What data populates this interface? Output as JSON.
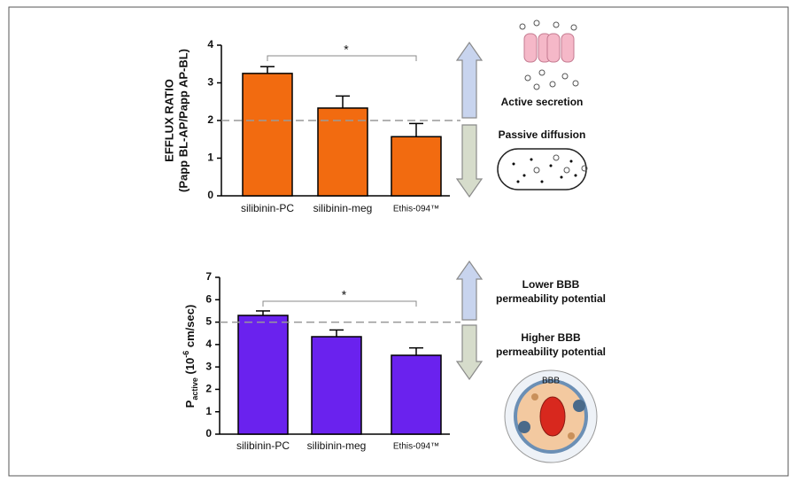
{
  "chart_data": [
    {
      "type": "bar",
      "ylabel": [
        "EFFLUX RATIO",
        "(Papp BL-AP/Papp AP-BL)"
      ],
      "categories": [
        "silibinin-PC",
        "silibinin-meg",
        "Ethis-094™"
      ],
      "values": [
        3.25,
        2.33,
        1.57
      ],
      "errors": [
        0.18,
        0.32,
        0.35
      ],
      "color": "#f26b10",
      "ylim": [
        0,
        4
      ],
      "yticks": [
        0,
        1,
        2,
        3,
        4
      ],
      "reference_line": 2,
      "significance_label": "*",
      "notes": {
        "upper": [
          "Active secretion"
        ],
        "lower": [
          "Passive diffusion"
        ]
      }
    },
    {
      "type": "bar",
      "ylabel": {
        "main": "P",
        "sub": "active",
        "pre": " (10",
        "sup": "-6",
        "post": " cm/sec)"
      },
      "categories": [
        "silibinin-PC",
        "silibinin-meg",
        "Ethis-094™"
      ],
      "values": [
        5.3,
        4.35,
        3.52
      ],
      "errors": [
        0.2,
        0.3,
        0.33
      ],
      "color": "#6a22ee",
      "ylim": [
        0,
        7
      ],
      "yticks": [
        0,
        1,
        2,
        3,
        4,
        5,
        6,
        7
      ],
      "reference_line": 5,
      "significance_label": "*",
      "notes": {
        "upper": [
          "Lower BBB",
          "permeability potential"
        ],
        "lower": [
          "Higher BBB",
          "permeability potential"
        ]
      },
      "illustration_label": "BBB"
    }
  ]
}
